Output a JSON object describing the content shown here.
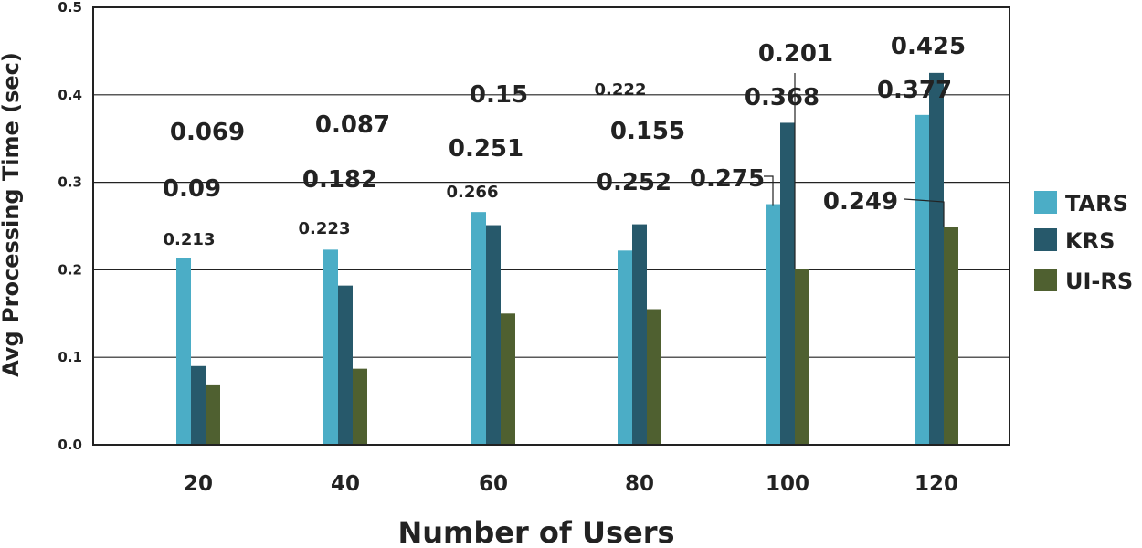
{
  "chart_data": {
    "type": "bar",
    "title": "",
    "xlabel": "Number of Users",
    "ylabel": "Avg Processing Time (sec)",
    "ylim": [
      0,
      0.5
    ],
    "yticks": [
      "0.0",
      "0.1",
      "0.2",
      "0.3",
      "0.4",
      "0.5"
    ],
    "categories": [
      "20",
      "40",
      "60",
      "80",
      "100",
      "120"
    ],
    "legend_position": "right",
    "series": [
      {
        "name": "TARS",
        "color": "#4BADC6",
        "values": [
          0.213,
          0.223,
          0.266,
          0.222,
          0.275,
          0.377
        ],
        "labels": [
          "0.213",
          "0.223",
          "0.266",
          "0.222",
          "0.275",
          "0.377"
        ]
      },
      {
        "name": "KRS",
        "color": "#27596B",
        "values": [
          0.09,
          0.182,
          0.251,
          0.252,
          0.368,
          0.425
        ],
        "labels": [
          "0.09",
          "0.182",
          "0.251",
          "0.252",
          "0.368",
          "0.425"
        ]
      },
      {
        "name": "UI-RS",
        "color": "#4F6030",
        "values": [
          0.069,
          0.087,
          0.15,
          0.155,
          0.201,
          0.249
        ],
        "labels": [
          "0.069",
          "0.087",
          "0.15",
          "0.155",
          "0.201",
          "0.249"
        ]
      }
    ]
  }
}
